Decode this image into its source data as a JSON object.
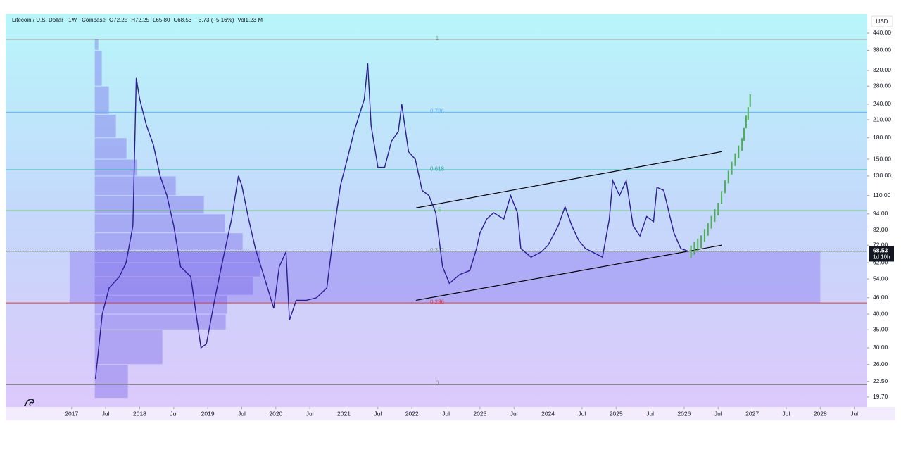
{
  "header": {
    "symbol": "Litecoin / U.S. Dollar · 1W · Coinbase",
    "stats": [
      "O72.25",
      "H72.25",
      "L65.80",
      "C68.53",
      "−3.73 (−5.16%)",
      "Vol1.23 M"
    ]
  },
  "currency": "USD",
  "chart_data": {
    "type": "line",
    "log_scale": true,
    "xlim": [
      2016.03,
      2028.69
    ],
    "ylim": [
      18.1,
      517.5
    ],
    "xticks": [
      2017,
      {
        "value": 2017.5,
        "label": "Jul"
      },
      2018,
      {
        "value": 2018.5,
        "label": "Jul"
      },
      2019,
      {
        "value": 2019.5,
        "label": "Jul"
      },
      2020,
      {
        "value": 2020.5,
        "label": "Jul"
      },
      2021,
      {
        "value": 2021.5,
        "label": "Jul"
      },
      2022,
      {
        "value": 2022.5,
        "label": "Jul"
      },
      2023,
      {
        "value": 2023.5,
        "label": "Jul"
      },
      2024,
      {
        "value": 2024.5,
        "label": "Jul"
      },
      2025,
      {
        "value": 2025.5,
        "label": "Jul"
      },
      2026,
      {
        "value": 2026.5,
        "label": "Jul"
      },
      2027,
      {
        "value": 2027.5,
        "label": "Jul"
      },
      2028,
      {
        "value": 2028.5,
        "label": "Jul"
      }
    ],
    "yticks": [
      {
        "value": 19.7,
        "label": "19.70"
      },
      {
        "value": 22.5,
        "label": "22.50"
      },
      {
        "value": 26,
        "label": "26.00"
      },
      {
        "value": 30,
        "label": "30.00"
      },
      {
        "value": 35,
        "label": "35.00"
      },
      {
        "value": 40,
        "label": "40.00"
      },
      {
        "value": 46,
        "label": "46.00"
      },
      {
        "value": 54,
        "label": "54.00"
      },
      {
        "value": 62,
        "label": "62.00"
      },
      {
        "value": 72,
        "label": "72.00"
      },
      {
        "value": 82,
        "label": "82.00"
      },
      {
        "value": 94,
        "label": "94.00"
      },
      {
        "value": 110,
        "label": "110.00"
      },
      {
        "value": 130,
        "label": "130.00"
      },
      {
        "value": 150,
        "label": "150.00"
      },
      {
        "value": 180,
        "label": "180.00"
      },
      {
        "value": 210,
        "label": "210.00"
      },
      {
        "value": 240,
        "label": "240.00"
      },
      {
        "value": 280,
        "label": "280.00"
      },
      {
        "value": 320,
        "label": "320.00"
      },
      {
        "value": 380,
        "label": "380.00"
      },
      {
        "value": 440,
        "label": "440.00"
      }
    ],
    "series": [
      {
        "color": "#2b1d94",
        "x": [
          2017.35,
          2017.45,
          2017.55,
          2017.7,
          2017.8,
          2017.9,
          2017.95,
          2018.0,
          2018.1,
          2018.2,
          2018.3,
          2018.4,
          2018.5,
          2018.6,
          2018.75,
          2018.9,
          2018.98,
          2019.1,
          2019.2,
          2019.35,
          2019.45,
          2019.5,
          2019.6,
          2019.7,
          2019.8,
          2019.9,
          2019.97,
          2020.05,
          2020.15,
          2020.2,
          2020.3,
          2020.45,
          2020.6,
          2020.75,
          2020.85,
          2020.95,
          2021.05,
          2021.15,
          2021.3,
          2021.35,
          2021.4,
          2021.5,
          2021.6,
          2021.7,
          2021.8,
          2021.85,
          2021.95,
          2022.05,
          2022.15,
          2022.25,
          2022.35,
          2022.45,
          2022.55,
          2022.7,
          2022.85,
          2022.95,
          2023.0,
          2023.1,
          2023.2,
          2023.35,
          2023.45,
          2023.55,
          2023.6,
          2023.75,
          2023.9,
          2024.0,
          2024.15,
          2024.25,
          2024.35,
          2024.45,
          2024.55,
          2024.65,
          2024.8,
          2024.9,
          2024.95,
          2025.05,
          2025.15,
          2025.25,
          2025.35,
          2025.45,
          2025.55,
          2025.6,
          2025.7,
          2025.8,
          2025.85,
          2025.95,
          2026.05
        ],
        "values": [
          23,
          40,
          50,
          55,
          62,
          85,
          300,
          250,
          200,
          170,
          130,
          110,
          85,
          60,
          55,
          30,
          31,
          45,
          60,
          90,
          130,
          120,
          90,
          70,
          58,
          48,
          42,
          60,
          68,
          38,
          45,
          45,
          46,
          50,
          80,
          120,
          150,
          190,
          250,
          340,
          200,
          140,
          140,
          175,
          190,
          240,
          160,
          150,
          115,
          110,
          95,
          60,
          52,
          56,
          58,
          70,
          80,
          90,
          95,
          90,
          110,
          95,
          70,
          65,
          68,
          72,
          85,
          100,
          85,
          75,
          70,
          68,
          65,
          90,
          125,
          110,
          125,
          85,
          78,
          92,
          88,
          118,
          115,
          90,
          80,
          70,
          68.53
        ]
      },
      {
        "color": "#4caf50",
        "x": [
          2026.1,
          2026.15,
          2026.2,
          2026.25,
          2026.3,
          2026.35,
          2026.4,
          2026.45,
          2026.5,
          2026.55,
          2026.6,
          2026.65,
          2026.7,
          2026.75,
          2026.8,
          2026.85,
          2026.88,
          2026.91,
          2026.94,
          2026.97
        ],
        "values": [
          66,
          68,
          70,
          72,
          76,
          80,
          85,
          90,
          95,
          105,
          115,
          125,
          135,
          145,
          155,
          165,
          180,
          200,
          215,
          240
        ]
      }
    ],
    "fib_levels": [
      {
        "label": "1",
        "value": 417,
        "color": "#8a8a8a"
      },
      {
        "label": "0.786",
        "value": 224,
        "color": "#64b5f6"
      },
      {
        "label": "0.618",
        "value": 137,
        "color": "#26a69a"
      },
      {
        "label": "0.5",
        "value": 96.7,
        "color": "#66bb6a"
      },
      {
        "label": "0.382",
        "value": 68.3,
        "color": "#8aa08a"
      },
      {
        "label": "0.236",
        "value": 44,
        "color": "#e53935"
      },
      {
        "label": "0",
        "value": 22,
        "color": "#8a8a8a"
      }
    ],
    "trendlines": [
      {
        "x": [
          2022.06,
          2026.55
        ],
        "y": [
          99,
          160
        ]
      },
      {
        "x": [
          2022.06,
          2026.55
        ],
        "y": [
          45,
          72
        ]
      }
    ],
    "range_box": {
      "x": [
        2016.97,
        2028.0
      ],
      "y": [
        44,
        68.53
      ],
      "color": "#8c7cf0"
    },
    "volume_profile": {
      "x": 2017.34,
      "color": "#6a55e6",
      "bins": [
        19.5,
        26,
        35,
        40,
        47,
        55,
        62,
        69,
        80,
        94,
        110,
        130,
        150,
        180,
        220,
        280,
        380,
        420
      ],
      "values": [
        47,
        96,
        186,
        188,
        225,
        235,
        235,
        210,
        185,
        155,
        115,
        60,
        45,
        30,
        20,
        10,
        5
      ]
    },
    "last_price": 68.53,
    "countdown": "1d 10h"
  }
}
